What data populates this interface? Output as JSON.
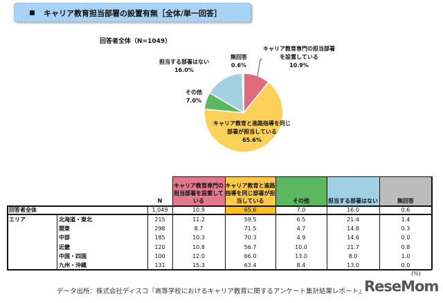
{
  "header": {
    "title": "キャリア教育担当部署の設置有無［全体/単一回答］",
    "subtitle": "回答者全体（N=1049）"
  },
  "chart_data": {
    "type": "pie",
    "title": "キャリア教育担当部署の設置有無［全体/単一回答］",
    "subtitle": "回答者全体（N=1049）",
    "slices": [
      {
        "label": "キャリア教育専門の担当部署を設置している",
        "value": 10.9,
        "color": "#e06b7d",
        "display": "10.9%"
      },
      {
        "label": "キャリア教育と進路指導を同じ部署が担当している",
        "value": 65.6,
        "color": "#fcd15a",
        "display": "65.6%"
      },
      {
        "label": "その他",
        "value": 7.0,
        "color": "#5cb860",
        "display": "7.0%"
      },
      {
        "label": "担当する部署はない",
        "value": 16.0,
        "color": "#a3cfe0",
        "display": "16.0%"
      },
      {
        "label": "無回答",
        "value": 0.6,
        "color": "#bdbdbd",
        "display": "0.6%"
      }
    ]
  },
  "table": {
    "columns": [
      {
        "label": "N",
        "color": "#ffffff"
      },
      {
        "label": "キャリア教育専門の担当部署を設置している",
        "color": "#e07a8a"
      },
      {
        "label": "キャリア教育と進路指導を同じ部署が担当している",
        "color": "#fbc84a"
      },
      {
        "label": "その他",
        "color": "#5cb860"
      },
      {
        "label": "担当する部署はない",
        "color": "#9fd0e4"
      },
      {
        "label": "無回答",
        "color": "#bcbcbc"
      }
    ],
    "total": {
      "label": "回答者全体",
      "values": [
        "1,049",
        "10.9",
        "65.6",
        "7.0",
        "16.0",
        "0.6"
      ],
      "highlight_color": "#fbc020"
    },
    "group_label": "エリア",
    "rows": [
      {
        "label": "北海道・東北",
        "values": [
          "215",
          "11.2",
          "59.5",
          "6.5",
          "21.4",
          "1.4"
        ]
      },
      {
        "label": "関東",
        "values": [
          "298",
          "8.7",
          "71.5",
          "4.7",
          "14.8",
          "0.3"
        ]
      },
      {
        "label": "中部",
        "values": [
          "185",
          "10.3",
          "70.3",
          "4.9",
          "14.6",
          "0.0"
        ]
      },
      {
        "label": "近畿",
        "values": [
          "120",
          "10.8",
          "56.7",
          "10.0",
          "21.7",
          "0.8"
        ]
      },
      {
        "label": "中国・四国",
        "values": [
          "100",
          "12.0",
          "66.0",
          "13.0",
          "8.0",
          "1.0"
        ]
      },
      {
        "label": "九州・沖縄",
        "values": [
          "131",
          "15.3",
          "63.4",
          "8.4",
          "13.0",
          "0.0"
        ]
      }
    ],
    "unit": "(%)"
  },
  "footer": {
    "source": "データ出所：株式会社ディスコ『高等学校におけるキャリア教育に関するアンケート集計結果レポート』",
    "logo": "ReseMom"
  }
}
